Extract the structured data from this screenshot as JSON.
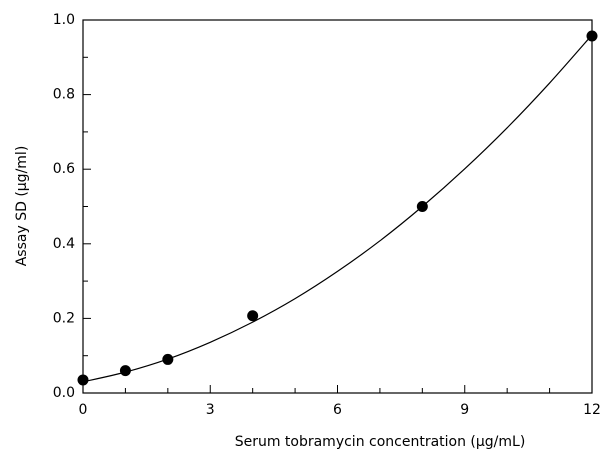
{
  "chart_data": {
    "type": "scatter",
    "xlabel": "Serum tobramycin concentration (μg/mL)",
    "ylabel": "Assay SD (μg/ml)",
    "x": [
      0,
      1,
      2,
      4,
      8,
      12
    ],
    "series": [
      {
        "color": "#000000",
        "values": [
          0.035,
          0.06,
          0.09,
          0.207,
          0.5,
          0.957
        ]
      }
    ],
    "fit": {
      "color": "#000000",
      "x": [
        0,
        1,
        2,
        3,
        4,
        5,
        6,
        7,
        8,
        9,
        10,
        11,
        12
      ],
      "values": [
        0.03,
        0.056,
        0.091,
        0.136,
        0.19,
        0.253,
        0.326,
        0.408,
        0.5,
        0.601,
        0.711,
        0.831,
        0.96
      ]
    },
    "xlim": [
      0,
      12
    ],
    "xticks": [
      0,
      3,
      6,
      9,
      12
    ],
    "xminorticks": [
      1,
      2,
      4,
      5,
      7,
      8,
      10,
      11
    ],
    "ylim": [
      0,
      1
    ],
    "yticks": [
      {
        "value": 0,
        "label": "0.0"
      },
      0.2,
      0.4,
      0.6,
      0.8,
      {
        "value": 1,
        "label": "1.0"
      }
    ],
    "yminorticks": [
      0.1,
      0.3,
      0.5,
      0.7,
      0.9
    ],
    "grid": false
  }
}
